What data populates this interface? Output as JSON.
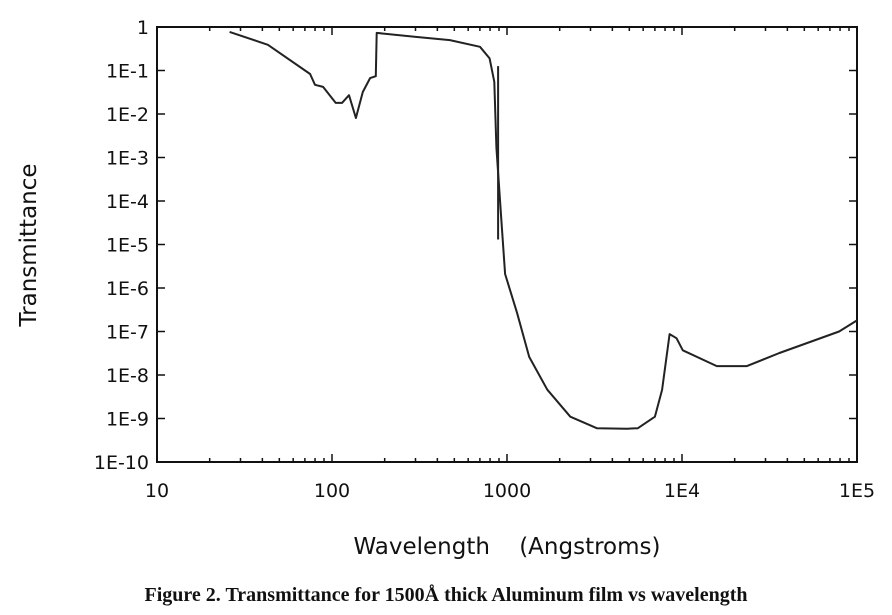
{
  "chart_data": {
    "type": "line",
    "title": "",
    "xlabel": "Wavelength    (Angstroms)",
    "ylabel": "Transmittance",
    "x_scale": "log",
    "y_scale": "log",
    "xlim": [
      10,
      100000
    ],
    "ylim": [
      1e-10,
      1
    ],
    "grid": false,
    "x_ticks": [
      10,
      100,
      1000,
      10000,
      100000
    ],
    "x_tick_labels": [
      "10",
      "100",
      "1000",
      "1E4",
      "1E5"
    ],
    "y_ticks": [
      1,
      0.1,
      0.01,
      0.001,
      0.0001,
      1e-05,
      1e-06,
      1e-07,
      1e-08,
      1e-09,
      1e-10
    ],
    "y_tick_labels": [
      "1",
      "1E-1",
      "1E-2",
      "1E-3",
      "1E-4",
      "1E-5",
      "1E-6",
      "1E-7",
      "1E-8",
      "1E-9",
      "1E-10"
    ],
    "line_color": "#222222",
    "series": [
      {
        "x": [
          26,
          37,
          43,
          75,
          80,
          89,
          105,
          114,
          125,
          137,
          150,
          165,
          178,
          180,
          306,
          472,
          701,
          795,
          846,
          870,
          935,
          975,
          1140,
          1340,
          1700,
          2300,
          3260,
          4850,
          5600,
          7000,
          7700,
          8500,
          9300,
          10100,
          15800,
          23500,
          36000,
          79000,
          100000
        ],
        "y": [
          0.77,
          0.48,
          0.39,
          0.083,
          0.047,
          0.042,
          0.018,
          0.018,
          0.027,
          0.0081,
          0.032,
          0.067,
          0.074,
          0.73,
          0.59,
          0.5,
          0.35,
          0.19,
          0.055,
          0.0017,
          2.4e-05,
          2.1e-06,
          2.7e-07,
          2.6e-08,
          4.6e-09,
          1.1e-09,
          6e-10,
          5.8e-10,
          6e-10,
          1.1e-09,
          4.6e-09,
          8.7e-08,
          7e-08,
          3.7e-08,
          1.6e-08,
          1.6e-08,
          3.2e-08,
          1e-07,
          1.8e-07
        ]
      },
      {
        "x": [
          890,
          890
        ],
        "y": [
          0.126,
          1.3e-05
        ]
      }
    ]
  },
  "caption": "Figure 2. Transmittance for 1500Å thick Aluminum film vs wavelength"
}
